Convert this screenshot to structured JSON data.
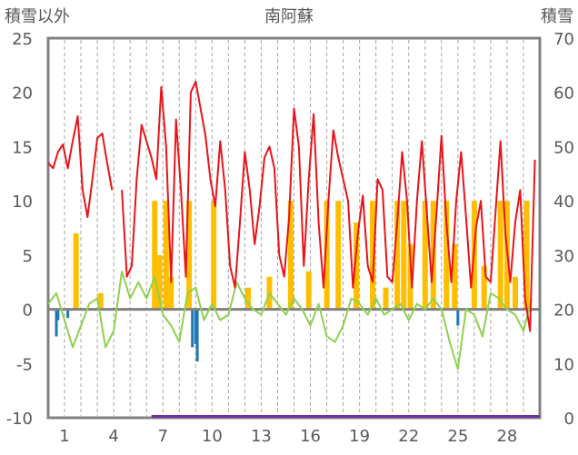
{
  "chart_data": {
    "type": "line",
    "title": "南阿蘇",
    "ylabel_left": "積雪以外",
    "ylabel_right": "積雪",
    "x_ticks": [
      "1",
      "4",
      "7",
      "10",
      "13",
      "16",
      "19",
      "22",
      "25",
      "28"
    ],
    "x_tick_days": [
      1,
      4,
      7,
      10,
      13,
      16,
      19,
      22,
      25,
      28
    ],
    "x_range": [
      0,
      30
    ],
    "ylim_left": [
      -10,
      25
    ],
    "y_ticks_left": [
      "25",
      "20",
      "15",
      "10",
      "5",
      "0",
      "-5",
      "-10"
    ],
    "ylim_right": [
      0,
      70
    ],
    "y_ticks_right": [
      "70",
      "60",
      "50",
      "40",
      "30",
      "20",
      "10",
      "0"
    ],
    "colors": {
      "temperature": "#e8141a",
      "precipitation": "#ffbf00",
      "wind_or_sun": "#8ed14f",
      "negative_bars": "#1f77b4",
      "snow": "#7030a0",
      "zero_line": "#808080",
      "frame": "#808080",
      "grid": "#a6a6a6"
    },
    "series": [
      {
        "key": "red",
        "axis": "left",
        "x": [
          0.0,
          0.3,
          0.6,
          0.9,
          1.2,
          1.5,
          1.8,
          2.1,
          2.4,
          2.7,
          3.0,
          3.3,
          3.6,
          3.9,
          4.2,
          4.5,
          4.8,
          5.1,
          5.4,
          5.7,
          6.0,
          6.3,
          6.6,
          6.9,
          7.2,
          7.5,
          7.8,
          8.1,
          8.4,
          8.7,
          9.0,
          9.3,
          9.6,
          9.9,
          10.2,
          10.5,
          10.8,
          11.1,
          11.4,
          11.7,
          12.0,
          12.3,
          12.6,
          12.9,
          13.2,
          13.5,
          13.8,
          14.1,
          14.4,
          14.7,
          15.0,
          15.3,
          15.6,
          15.9,
          16.2,
          16.5,
          16.8,
          17.1,
          17.4,
          17.7,
          18.0,
          18.3,
          18.6,
          18.9,
          19.2,
          19.5,
          19.8,
          20.1,
          20.4,
          20.7,
          21.0,
          21.3,
          21.6,
          21.9,
          22.2,
          22.5,
          22.8,
          23.1,
          23.4,
          23.7,
          24.0,
          24.3,
          24.6,
          24.9,
          25.2,
          25.5,
          25.8,
          26.1,
          26.4,
          26.7,
          27.0,
          27.3,
          27.6,
          27.9,
          28.2,
          28.5,
          28.8,
          29.1,
          29.4,
          29.7
        ],
        "y": [
          13.5,
          13.0,
          14.5,
          15.2,
          13.0,
          15.5,
          17.8,
          11.0,
          8.5,
          12.0,
          15.8,
          16.2,
          13.5,
          11.0,
          null,
          11.0,
          3.0,
          4.0,
          12.0,
          17.0,
          15.5,
          14.0,
          12.0,
          20.5,
          15.0,
          2.5,
          17.5,
          11.0,
          3.0,
          20.0,
          21.0,
          18.5,
          16.0,
          12.0,
          9.5,
          15.5,
          11.0,
          4.0,
          2.0,
          8.0,
          14.5,
          11.0,
          6.0,
          9.5,
          14.0,
          15.0,
          13.0,
          5.0,
          3.0,
          8.5,
          18.5,
          15.0,
          4.0,
          12.0,
          18.0,
          8.0,
          2.0,
          10.0,
          16.5,
          14.0,
          12.0,
          10.0,
          2.0,
          7.0,
          10.5,
          4.0,
          2.5,
          12.0,
          11.0,
          3.0,
          2.5,
          8.0,
          14.5,
          10.0,
          2.0,
          10.0,
          15.5,
          9.0,
          2.5,
          9.0,
          16.0,
          8.0,
          2.5,
          10.0,
          14.5,
          8.5,
          2.0,
          7.5,
          10.0,
          3.0,
          2.5,
          9.0,
          15.5,
          7.0,
          2.5,
          8.0,
          11.0,
          1.0,
          -2.0,
          13.8
        ]
      },
      {
        "key": "green",
        "axis": "left",
        "x": [
          0.0,
          0.5,
          1.0,
          1.5,
          2.0,
          2.5,
          3.0,
          3.5,
          4.0,
          4.5,
          5.0,
          5.5,
          6.0,
          6.5,
          7.0,
          7.5,
          8.0,
          8.5,
          9.0,
          9.5,
          10.0,
          10.5,
          11.0,
          11.5,
          12.0,
          12.5,
          13.0,
          13.5,
          14.0,
          14.5,
          15.0,
          15.5,
          16.0,
          16.5,
          17.0,
          17.5,
          18.0,
          18.5,
          19.0,
          19.5,
          20.0,
          20.5,
          21.0,
          21.5,
          22.0,
          22.5,
          23.0,
          23.5,
          24.0,
          24.5,
          25.0,
          25.5,
          26.0,
          26.5,
          27.0,
          27.5,
          28.0,
          28.5,
          29.0,
          29.5
        ],
        "y": [
          0.5,
          1.5,
          -1.0,
          -3.5,
          -1.5,
          0.5,
          1.0,
          -3.5,
          -2.0,
          3.5,
          1.0,
          2.5,
          1.0,
          3.0,
          -0.5,
          -1.5,
          -3.0,
          1.5,
          2.0,
          -1.0,
          0.5,
          -1.0,
          -0.5,
          2.5,
          1.0,
          0.0,
          -0.5,
          1.5,
          0.5,
          -0.5,
          1.0,
          0.0,
          -1.5,
          0.5,
          -2.5,
          -3.0,
          -1.5,
          1.0,
          0.5,
          -0.5,
          1.0,
          -0.5,
          0.0,
          0.5,
          -1.0,
          0.5,
          0.0,
          1.0,
          0.0,
          -3.0,
          -5.5,
          0.0,
          -0.5,
          -2.5,
          1.5,
          1.0,
          0.0,
          -0.5,
          -2.0,
          1.0
        ]
      }
    ],
    "precipitation_bars": {
      "x": [
        1.7,
        3.2,
        6.5,
        6.8,
        7.2,
        7.5,
        8.6,
        10.1,
        12.2,
        13.5,
        14.8,
        15.9,
        17.0,
        17.7,
        18.8,
        19.8,
        20.6,
        21.3,
        21.7,
        22.1,
        23.0,
        23.5,
        24.3,
        24.8,
        26.0,
        26.6,
        27.6,
        28.0,
        28.5,
        29.2
      ],
      "y": [
        7.0,
        1.5,
        10.0,
        5.0,
        10.0,
        3.0,
        10.0,
        10.0,
        2.0,
        3.0,
        10.0,
        3.5,
        10.0,
        10.0,
        8.0,
        10.0,
        2.0,
        10.0,
        10.0,
        6.0,
        10.0,
        10.0,
        10.0,
        6.0,
        10.0,
        4.0,
        10.0,
        10.0,
        3.0,
        10.0
      ]
    },
    "negative_bars": {
      "x": [
        0.5,
        0.6,
        1.2,
        8.8,
        9.0,
        9.1,
        25.0
      ],
      "y": [
        -2.5,
        -1.0,
        -0.8,
        -3.5,
        -3.2,
        -4.8,
        -1.5
      ]
    },
    "snow": {
      "axis": "right",
      "x": [
        6.3,
        30.0
      ],
      "y": [
        0,
        0
      ]
    }
  }
}
